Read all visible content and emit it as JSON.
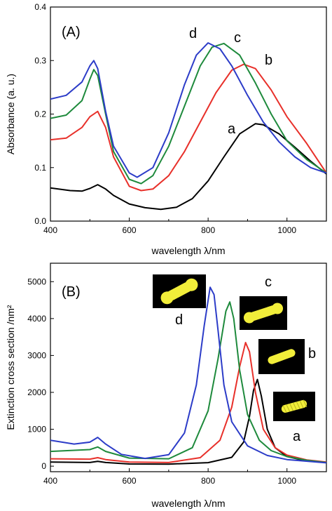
{
  "chart_data": [
    {
      "panel_label": "(A)",
      "type": "line",
      "xlabel": "wavelength λ/nm",
      "ylabel": "Absorbance (a. u.)",
      "xlim": [
        400,
        1100
      ],
      "ylim": [
        0.0,
        0.4
      ],
      "xticks": [
        400,
        600,
        800,
        1000
      ],
      "yticks": [
        0.0,
        0.1,
        0.2,
        0.3,
        0.4
      ],
      "ytick_labels": [
        "0.0",
        "0.1",
        "0.2",
        "0.3",
        "0.4"
      ],
      "series": [
        {
          "name": "a",
          "color": "#000000",
          "x": [
            400,
            450,
            480,
            500,
            520,
            540,
            560,
            600,
            640,
            680,
            720,
            760,
            800,
            840,
            880,
            920,
            940,
            980,
            1020,
            1060,
            1100
          ],
          "y": [
            0.062,
            0.057,
            0.056,
            0.061,
            0.068,
            0.06,
            0.048,
            0.032,
            0.025,
            0.022,
            0.026,
            0.042,
            0.075,
            0.12,
            0.163,
            0.182,
            0.18,
            0.163,
            0.138,
            0.112,
            0.088
          ]
        },
        {
          "name": "b",
          "color": "#e8302a",
          "x": [
            400,
            440,
            480,
            500,
            520,
            540,
            560,
            600,
            630,
            660,
            700,
            740,
            780,
            820,
            860,
            890,
            920,
            960,
            1000,
            1050,
            1100
          ],
          "y": [
            0.152,
            0.155,
            0.175,
            0.195,
            0.205,
            0.175,
            0.12,
            0.065,
            0.057,
            0.06,
            0.085,
            0.13,
            0.185,
            0.24,
            0.282,
            0.293,
            0.285,
            0.245,
            0.195,
            0.145,
            0.09
          ]
        },
        {
          "name": "c",
          "color": "#1e8a3c",
          "x": [
            400,
            440,
            480,
            500,
            510,
            520,
            540,
            560,
            600,
            630,
            660,
            700,
            740,
            780,
            810,
            840,
            880,
            920,
            960,
            1000,
            1050,
            1100
          ],
          "y": [
            0.192,
            0.198,
            0.225,
            0.265,
            0.283,
            0.272,
            0.2,
            0.13,
            0.078,
            0.07,
            0.085,
            0.14,
            0.215,
            0.29,
            0.325,
            0.332,
            0.31,
            0.258,
            0.2,
            0.15,
            0.115,
            0.09
          ]
        },
        {
          "name": "d",
          "color": "#2c3cc8",
          "x": [
            400,
            440,
            480,
            500,
            510,
            520,
            540,
            560,
            600,
            620,
            660,
            700,
            740,
            770,
            800,
            830,
            860,
            900,
            940,
            980,
            1020,
            1060,
            1100
          ],
          "y": [
            0.228,
            0.235,
            0.26,
            0.29,
            0.3,
            0.285,
            0.205,
            0.14,
            0.09,
            0.082,
            0.1,
            0.165,
            0.255,
            0.31,
            0.333,
            0.322,
            0.29,
            0.235,
            0.185,
            0.148,
            0.12,
            0.1,
            0.09
          ]
        }
      ]
    },
    {
      "panel_label": "(B)",
      "type": "line",
      "xlabel": "wavelength λ/nm",
      "ylabel": "Extinction cross section /nm²",
      "xlim": [
        400,
        1100
      ],
      "ylim": [
        -150,
        5500
      ],
      "xticks": [
        400,
        600,
        800,
        1000
      ],
      "yticks": [
        0,
        1000,
        2000,
        3000,
        4000,
        5000
      ],
      "ytick_labels": [
        "0",
        "1000",
        "2000",
        "3000",
        "4000",
        "5000"
      ],
      "series": [
        {
          "name": "a",
          "color": "#000000",
          "x": [
            400,
            500,
            520,
            540,
            600,
            700,
            800,
            860,
            890,
            905,
            915,
            925,
            935,
            950,
            970,
            1000,
            1050,
            1100
          ],
          "y": [
            110,
            100,
            130,
            100,
            60,
            55,
            95,
            240,
            650,
            1350,
            2050,
            2350,
            1900,
            1000,
            500,
            260,
            140,
            100
          ]
        },
        {
          "name": "b",
          "color": "#e8302a",
          "x": [
            400,
            500,
            520,
            540,
            600,
            700,
            780,
            830,
            860,
            880,
            895,
            905,
            920,
            940,
            970,
            1000,
            1050,
            1100
          ],
          "y": [
            200,
            190,
            230,
            180,
            110,
            100,
            230,
            700,
            1600,
            2700,
            3350,
            3100,
            2000,
            1000,
            500,
            300,
            170,
            110
          ]
        },
        {
          "name": "c",
          "color": "#1e8a3c",
          "x": [
            400,
            500,
            520,
            540,
            600,
            700,
            760,
            800,
            825,
            845,
            855,
            865,
            880,
            900,
            930,
            960,
            1000,
            1050,
            1100
          ],
          "y": [
            400,
            450,
            520,
            400,
            220,
            200,
            500,
            1500,
            2900,
            4200,
            4450,
            4000,
            2600,
            1400,
            700,
            420,
            260,
            160,
            100
          ]
        },
        {
          "name": "d",
          "color": "#2c3cc8",
          "x": [
            400,
            460,
            500,
            520,
            540,
            580,
            640,
            700,
            740,
            770,
            790,
            805,
            815,
            825,
            840,
            860,
            900,
            950,
            1000,
            1100
          ],
          "y": [
            700,
            600,
            650,
            780,
            600,
            320,
            210,
            310,
            900,
            2200,
            3800,
            4850,
            4650,
            3700,
            2200,
            1200,
            550,
            290,
            180,
            90
          ]
        }
      ]
    }
  ]
}
